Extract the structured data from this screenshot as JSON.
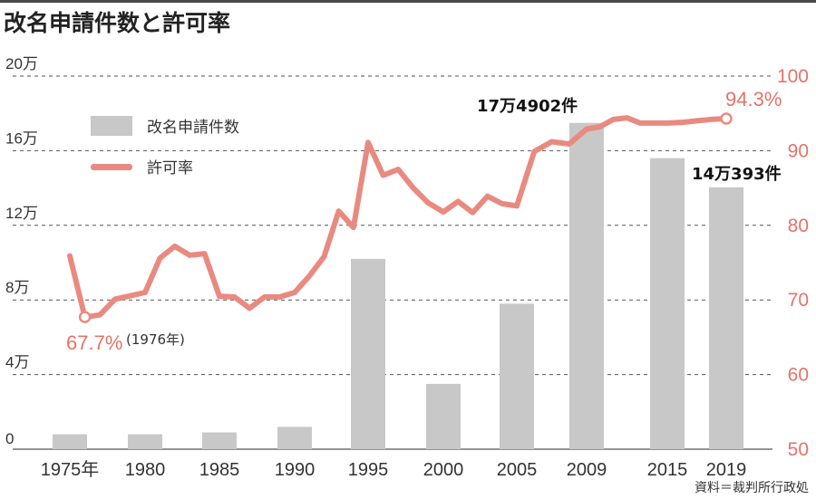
{
  "title": "改名申請件数と許可率",
  "colors": {
    "bar": "#c8c8c8",
    "line": "#e98a80",
    "accent": "#e57368",
    "grid": "#555555"
  },
  "chart_data": {
    "type": "bar",
    "categories": [
      "1975年",
      "1980",
      "1985",
      "1990",
      "1995",
      "2000",
      "2005",
      "2009",
      "2015",
      "2019"
    ],
    "left_axis": {
      "ticks": [
        "0",
        "4万",
        "8万",
        "12万",
        "16万",
        "20万"
      ],
      "range": [
        0,
        200000
      ]
    },
    "right_axis": {
      "ticks": [
        "50",
        "60",
        "70",
        "80",
        "90",
        "100"
      ],
      "range": [
        50,
        100
      ]
    },
    "grid": true,
    "legend_position": "upper-left",
    "series": [
      {
        "name": "改名申請件数",
        "kind": "bar",
        "axis": "left",
        "values": [
          8000,
          8000,
          9000,
          12000,
          102000,
          35000,
          78000,
          174902,
          156000,
          140393
        ]
      },
      {
        "name": "許可率",
        "kind": "line",
        "axis": "right",
        "x": [
          1975,
          1976,
          1977,
          1978,
          1980,
          1981,
          1982,
          1983,
          1984,
          1985,
          1986,
          1987,
          1988,
          1989,
          1990,
          1991,
          1992,
          1993,
          1994,
          1995,
          1996,
          1997,
          1998,
          1999,
          2000,
          2001,
          2002,
          2003,
          2004,
          2005,
          2006,
          2007,
          2008,
          2009,
          2010,
          2011,
          2012,
          2013,
          2014,
          2015,
          2016,
          2017,
          2018,
          2019
        ],
        "values": [
          75.9,
          67.7,
          68.0,
          70.1,
          71.0,
          75.6,
          77.2,
          76.0,
          76.2,
          70.5,
          70.4,
          68.9,
          70.4,
          70.4,
          71.0,
          73.2,
          75.8,
          81.9,
          79.7,
          91.1,
          86.7,
          87.5,
          85.0,
          83.0,
          81.8,
          83.2,
          81.7,
          83.9,
          82.9,
          82.6,
          89.9,
          91.2,
          90.9,
          92.9,
          93.2,
          94.2,
          94.4,
          93.7,
          93.7,
          93.7,
          93.8,
          94.0,
          94.2,
          94.3
        ]
      }
    ],
    "annotations": {
      "max_bar": "17万4902件",
      "last_bar": "14万393件",
      "last_rate": "94.3%",
      "min_rate": "67.7%",
      "min_rate_year": "(1976年)"
    },
    "source": "資料＝裁判所行政処"
  }
}
